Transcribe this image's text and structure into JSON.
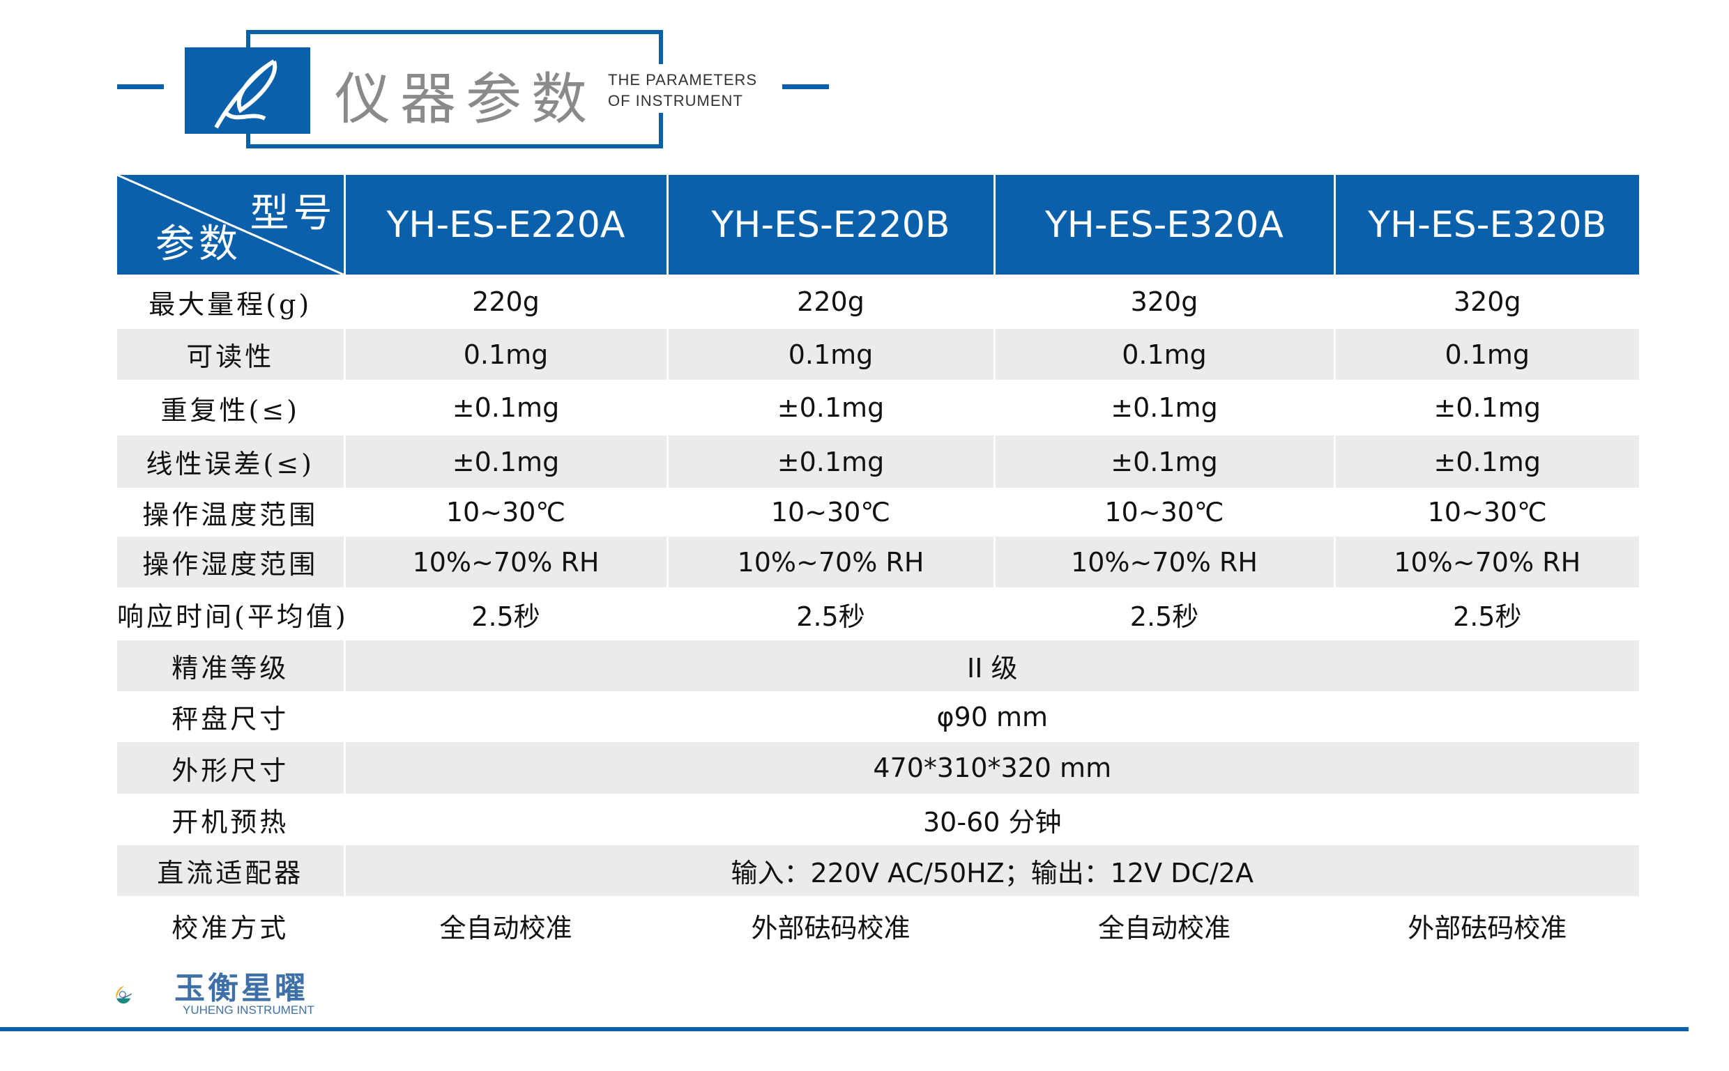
{
  "header": {
    "title": "仪器参数",
    "subtitle_en": "THE PARAMETERS OF INSTRUMENT",
    "icon": "quill-pen-icon",
    "accent": "#0b60ab"
  },
  "table": {
    "corner_top": "型号",
    "corner_bottom": "参数",
    "models": [
      "YH-ES-E220A",
      "YH-ES-E220B",
      "YH-ES-E320A",
      "YH-ES-E320B"
    ],
    "rows": [
      {
        "label": "最大量程(g)",
        "values": [
          "220g",
          "220g",
          "320g",
          "320g"
        ]
      },
      {
        "label": "可读性",
        "values": [
          "0.1mg",
          "0.1mg",
          "0.1mg",
          "0.1mg"
        ]
      },
      {
        "label": "重复性(≤)",
        "values": [
          "±0.1mg",
          "±0.1mg",
          "±0.1mg",
          "±0.1mg"
        ]
      },
      {
        "label": "线性误差(≤)",
        "values": [
          "±0.1mg",
          "±0.1mg",
          "±0.1mg",
          "±0.1mg"
        ]
      },
      {
        "label": "操作温度范围",
        "values": [
          "10~30℃",
          "10~30℃",
          "10~30℃",
          "10~30℃"
        ]
      },
      {
        "label": "操作湿度范围",
        "values": [
          "10%~70% RH",
          "10%~70% RH",
          "10%~70% RH",
          "10%~70% RH"
        ]
      },
      {
        "label": "响应时间(平均值)",
        "values": [
          "2.5秒",
          "2.5秒",
          "2.5秒",
          "2.5秒"
        ]
      },
      {
        "label": "精准等级",
        "value": "II 级"
      },
      {
        "label": "秤盘尺寸",
        "value": "φ90 mm"
      },
      {
        "label": "外形尺寸",
        "value": "470*310*320 mm"
      },
      {
        "label": "开机预热",
        "value": "30-60 分钟"
      },
      {
        "label": "直流适配器",
        "value": "输入：220V AC/50HZ；输出：12V DC/2A"
      },
      {
        "label": "校准方式",
        "values": [
          "全自动校准",
          "外部砝码校准",
          "全自动校准",
          "外部砝码校准"
        ]
      }
    ]
  },
  "footer": {
    "brand_cn": "玉衡星曜",
    "brand_en": "YUHENG INSTRUMENT"
  }
}
